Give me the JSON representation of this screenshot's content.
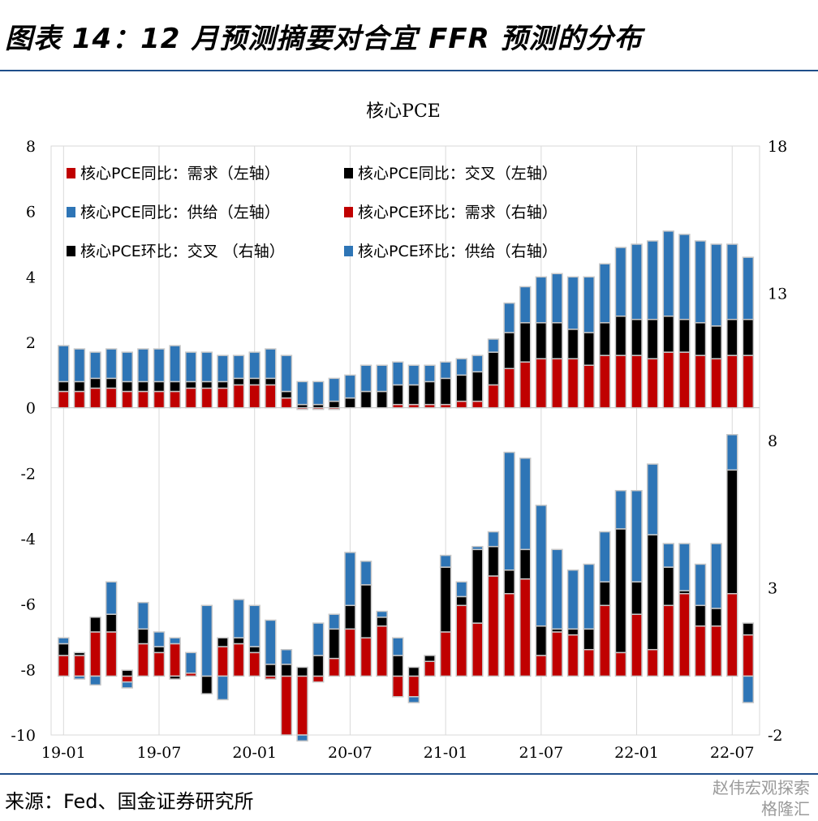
{
  "header": {
    "title": "图表 14：12 月预测摘要对合宜 FFR 预测的分布"
  },
  "footer": {
    "source": "来源：Fed、国金证券研究所"
  },
  "watermark": {
    "line1": "赵伟宏观探索",
    "line2": "格隆汇"
  },
  "chart_data": [
    {
      "type": "bar",
      "stacked": true,
      "title": "核心PCE",
      "axis": "left",
      "ylim": [
        -10,
        8
      ],
      "yticks": [
        8,
        6,
        4,
        2,
        0,
        -2,
        -4,
        -6,
        -8,
        -10
      ],
      "colors": {
        "demand": "#c00000",
        "cross": "#000000",
        "supply": "#2e75b6"
      },
      "series": [
        {
          "name": "核心PCE同比：需求（左轴）",
          "key": "demand",
          "values": [
            0.5,
            0.5,
            0.6,
            0.6,
            0.5,
            0.5,
            0.5,
            0.5,
            0.6,
            0.6,
            0.6,
            0.7,
            0.7,
            0.7,
            0.3,
            -0.05,
            -0.05,
            -0.05,
            0,
            0,
            0,
            0.1,
            0.1,
            0.1,
            0.1,
            0.2,
            0.2,
            0.7,
            1.2,
            1.4,
            1.5,
            1.5,
            1.5,
            1.3,
            1.6,
            1.6,
            1.6,
            1.5,
            1.7,
            1.7,
            1.6,
            1.5,
            1.6,
            1.6
          ]
        },
        {
          "name": "核心PCE同比：交叉（左轴）",
          "key": "cross",
          "values": [
            0.3,
            0.3,
            0.3,
            0.3,
            0.3,
            0.3,
            0.3,
            0.3,
            0.2,
            0.2,
            0.2,
            0.2,
            0.2,
            0.2,
            0.2,
            0.1,
            0.1,
            0.2,
            0.3,
            0.5,
            0.5,
            0.6,
            0.6,
            0.7,
            0.8,
            0.8,
            0.9,
            1.0,
            1.1,
            1.2,
            1.1,
            1.1,
            0.9,
            1.0,
            1.0,
            1.2,
            1.1,
            1.2,
            1.1,
            1.0,
            1.0,
            1.0,
            1.1,
            1.1
          ]
        },
        {
          "name": "核心PCE同比：供给（左轴）",
          "key": "supply",
          "values": [
            1.1,
            1.0,
            0.8,
            0.9,
            0.9,
            1.0,
            1.0,
            1.1,
            0.9,
            0.9,
            0.8,
            0.7,
            0.8,
            0.9,
            1.1,
            0.7,
            0.7,
            0.7,
            0.7,
            0.8,
            0.8,
            0.7,
            0.6,
            0.5,
            0.5,
            0.5,
            0.5,
            0.4,
            0.9,
            1.1,
            1.4,
            1.5,
            1.6,
            1.7,
            1.8,
            2.1,
            2.3,
            2.4,
            2.6,
            2.6,
            2.5,
            2.5,
            2.3,
            1.9
          ]
        }
      ]
    },
    {
      "type": "bar",
      "stacked": true,
      "axis": "right",
      "ylim": [
        -2,
        18
      ],
      "yticks": [
        18,
        13,
        8,
        3,
        -2
      ],
      "colors": {
        "demand": "#c00000",
        "cross": "#000000",
        "supply": "#2e75b6"
      },
      "series": [
        {
          "name": "核心PCE环比：需求（右轴）",
          "key": "demand",
          "values": [
            0.7,
            0.7,
            1.5,
            1.5,
            -0.2,
            1.1,
            0.8,
            1.1,
            0.1,
            0,
            1.0,
            1.1,
            0.8,
            -0.1,
            -2.0,
            -2.0,
            -0.2,
            0.6,
            1.6,
            1.3,
            1.7,
            -0.7,
            -0.7,
            0.5,
            1.5,
            2.4,
            1.8,
            3.4,
            2.8,
            3.3,
            0.7,
            1.5,
            1.4,
            0.9,
            2.4,
            0.8,
            2.1,
            0.9,
            2.4,
            2.8,
            1.7,
            1.7,
            2.8,
            1.4
          ]
        },
        {
          "name": "核心PCE环比：交叉（右轴）",
          "key": "cross",
          "values": [
            0.4,
            0.1,
            0.5,
            0.6,
            0.2,
            0.5,
            0.2,
            -0.1,
            0,
            -0.6,
            0.3,
            0.2,
            0.2,
            0.4,
            0.4,
            0.3,
            0.7,
            1.0,
            0.8,
            1.8,
            0.3,
            0.7,
            0.3,
            0.2,
            2.2,
            0.3,
            2.5,
            1.0,
            0.8,
            1.0,
            1.0,
            0.1,
            0.2,
            0.7,
            0.8,
            4.2,
            1.1,
            3.9,
            1.3,
            0.1,
            0.7,
            0.6,
            4.2,
            0.4
          ]
        },
        {
          "name": "核心PCE环比：供给（右轴）",
          "key": "supply",
          "values": [
            0.2,
            -0.1,
            -0.3,
            1.1,
            -0.2,
            0.9,
            0.5,
            0.2,
            0.7,
            2.4,
            -0.8,
            1.3,
            1.4,
            1.5,
            0.5,
            -0.2,
            1.1,
            0.5,
            1.8,
            0.8,
            0.2,
            0.6,
            -0.2,
            0,
            0.4,
            0.5,
            0.1,
            0.5,
            4.0,
            3.1,
            4.1,
            2.7,
            2.0,
            2.2,
            1.7,
            1.3,
            3.1,
            2.4,
            0.8,
            1.6,
            1.4,
            2.2,
            1.2,
            -0.9
          ]
        }
      ]
    }
  ],
  "x_axis": {
    "tick_labels": [
      "19-01",
      "19-07",
      "20-01",
      "20-07",
      "21-01",
      "21-07",
      "22-01",
      "22-07"
    ],
    "tick_every": 6
  },
  "legend": {
    "items": [
      "核心PCE同比：需求（左轴）",
      "核心PCE同比：交叉（左轴）",
      "核心PCE同比：供给（左轴）",
      "核心PCE环比：需求（右轴）",
      "核心PCE环比：交叉 （右轴）",
      "核心PCE环比：供给（右轴）"
    ],
    "colors": [
      "#c00000",
      "#000000",
      "#2e75b6",
      "#c00000",
      "#000000",
      "#2e75b6"
    ]
  }
}
